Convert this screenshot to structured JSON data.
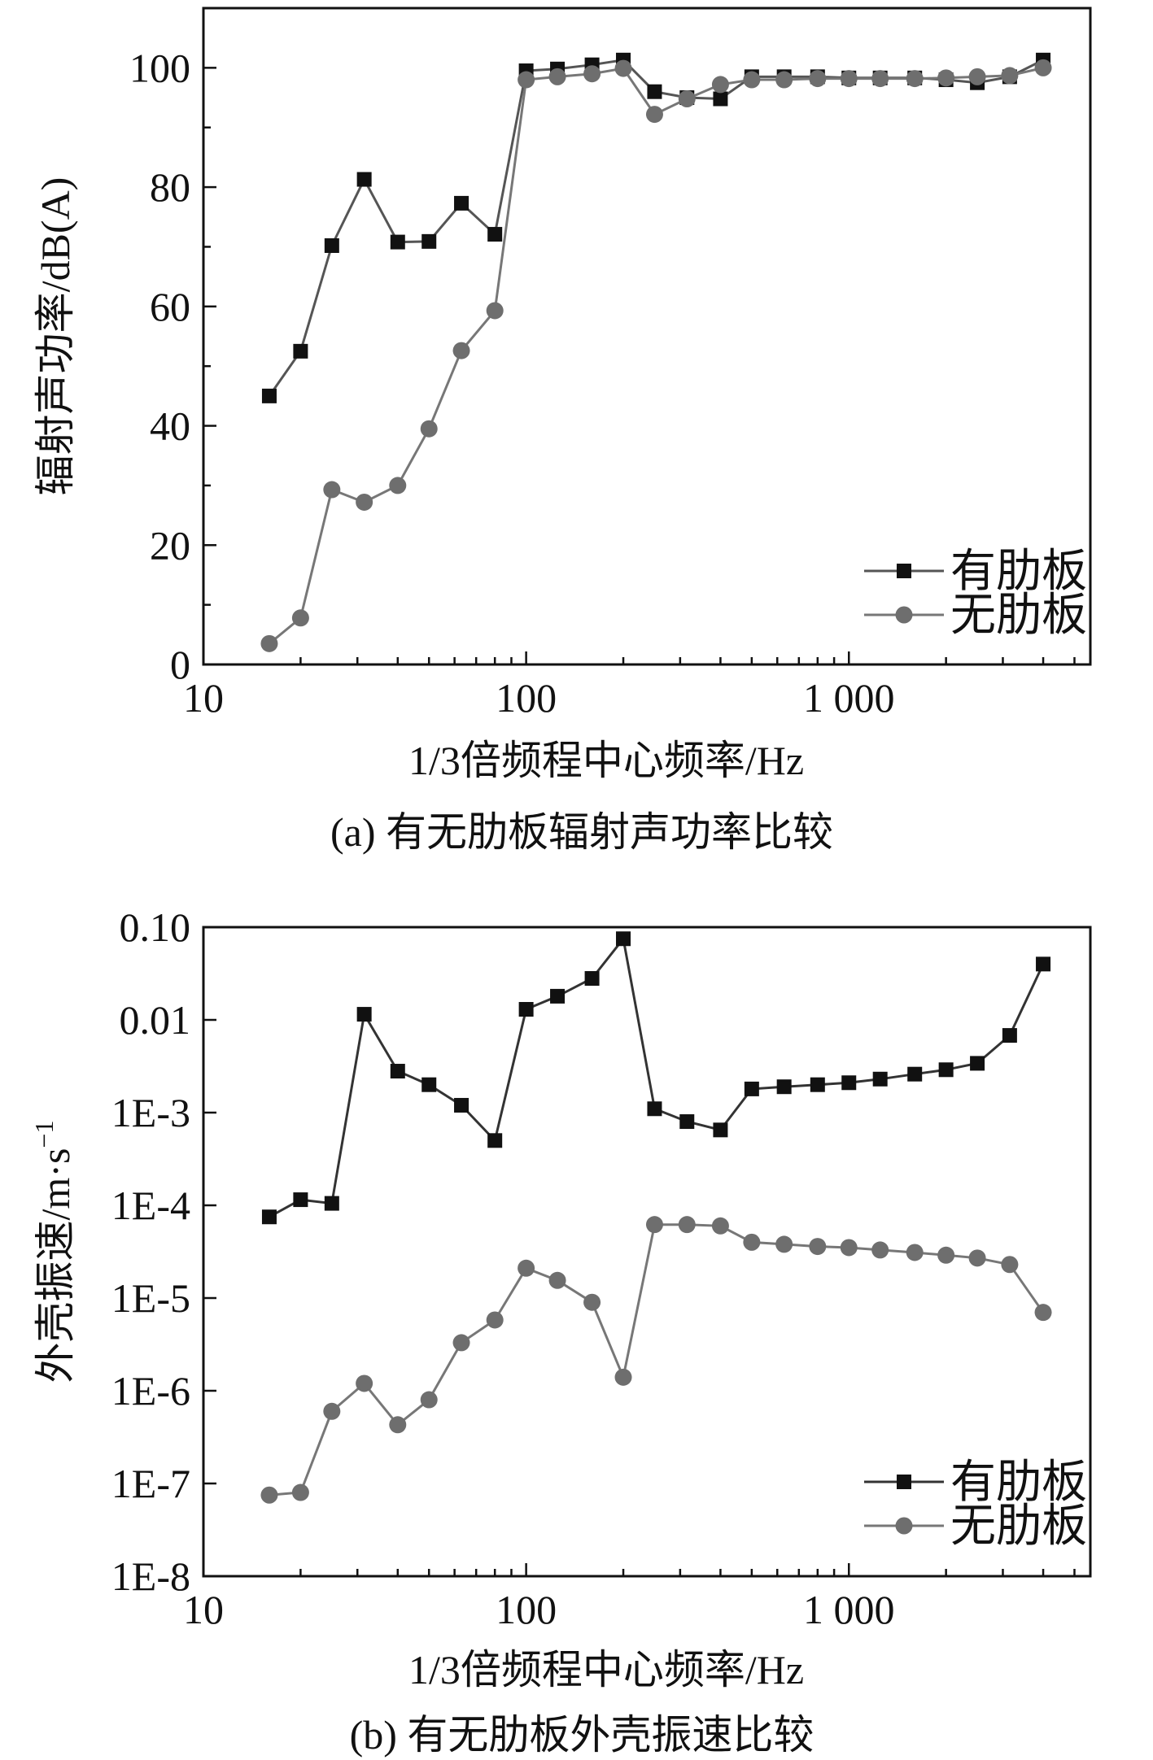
{
  "chart_data": [
    {
      "type": "line",
      "caption": "(a) 有无肋板辐射声功率比较",
      "xlabel": "1/3倍频程中心频率/Hz",
      "ylabel": "辐射声功率/dB(A)",
      "xscale": "log",
      "xlim": [
        10,
        5600
      ],
      "ylim": [
        0,
        110
      ],
      "xticks": [
        10,
        100,
        1000
      ],
      "xtick_labels": [
        "10",
        "100",
        "1 000"
      ],
      "yticks": [
        0,
        20,
        40,
        60,
        80,
        100
      ],
      "ytick_labels": [
        "0",
        "20",
        "40",
        "60",
        "80",
        "100"
      ],
      "grid": false,
      "legend_position": "bottom-right",
      "x": [
        16,
        20,
        25,
        31.5,
        40,
        50,
        63,
        80,
        100,
        125,
        160,
        200,
        250,
        315,
        400,
        500,
        630,
        800,
        1000,
        1250,
        1600,
        2000,
        2500,
        3150,
        4000
      ],
      "series": [
        {
          "name": "有肋板",
          "marker": "square",
          "color": "#111111",
          "line_color": "#555555",
          "values": [
            45,
            52.5,
            70.2,
            81.3,
            70.8,
            70.9,
            77.3,
            72.1,
            99.5,
            99.8,
            100.5,
            101.3,
            96,
            95,
            94.8,
            98.5,
            98.5,
            98.5,
            98.3,
            98.3,
            98.3,
            98,
            97.5,
            98.5,
            101.3
          ]
        },
        {
          "name": "无肋板",
          "marker": "circle",
          "color": "#6e6e6e",
          "line_color": "#777777",
          "values": [
            3.5,
            7.8,
            29.3,
            27.2,
            30,
            39.5,
            52.6,
            59.3,
            98,
            98.5,
            99,
            99.9,
            92.2,
            94.8,
            97.2,
            98,
            98,
            98.2,
            98.2,
            98.2,
            98.2,
            98.3,
            98.5,
            98.7,
            100
          ]
        }
      ]
    },
    {
      "type": "line",
      "caption": "(b) 有无肋板外壳振速比较",
      "xlabel": "1/3倍频程中心频率/Hz",
      "ylabel": "外壳振速/m·s",
      "ylabel_superscript": "−1",
      "xscale": "log",
      "yscale": "log",
      "xlim": [
        10,
        5600
      ],
      "ylim": [
        1e-08,
        0.1
      ],
      "xticks": [
        10,
        100,
        1000
      ],
      "xtick_labels": [
        "10",
        "100",
        "1 000"
      ],
      "yticks": [
        1e-08,
        1e-07,
        1e-06,
        1e-05,
        0.0001,
        0.001,
        0.01,
        0.1
      ],
      "ytick_labels": [
        "1E-8",
        "1E-7",
        "1E-6",
        "1E-5",
        "1E-4",
        "1E-3",
        "0.01",
        "0.10"
      ],
      "grid": false,
      "legend_position": "bottom-right",
      "x": [
        16,
        20,
        25,
        31.5,
        40,
        50,
        63,
        80,
        100,
        125,
        160,
        200,
        250,
        315,
        400,
        500,
        630,
        800,
        1000,
        1250,
        1600,
        2000,
        2500,
        3150,
        4000
      ],
      "series": [
        {
          "name": "有肋板",
          "marker": "square",
          "color": "#111111",
          "line_color": "#333333",
          "values": [
            7.5e-05,
            0.000115,
            0.000105,
            0.0115,
            0.0028,
            0.002,
            0.0012,
            0.0005,
            0.013,
            0.018,
            0.028,
            0.075,
            0.0011,
            0.0008,
            0.00065,
            0.0018,
            0.0019,
            0.002,
            0.0021,
            0.0023,
            0.0026,
            0.0029,
            0.0034,
            0.0068,
            0.04
          ]
        },
        {
          "name": "无肋板",
          "marker": "circle",
          "color": "#6e6e6e",
          "line_color": "#777777",
          "values": [
            7.5e-08,
            8e-08,
            6e-07,
            1.2e-06,
            4.3e-07,
            8e-07,
            3.3e-06,
            5.8e-06,
            2.1e-05,
            1.55e-05,
            9e-06,
            1.4e-06,
            6.2e-05,
            6.2e-05,
            6e-05,
            4e-05,
            3.8e-05,
            3.6e-05,
            3.5e-05,
            3.3e-05,
            3.1e-05,
            2.9e-05,
            2.7e-05,
            2.3e-05,
            7e-06
          ]
        }
      ]
    }
  ]
}
